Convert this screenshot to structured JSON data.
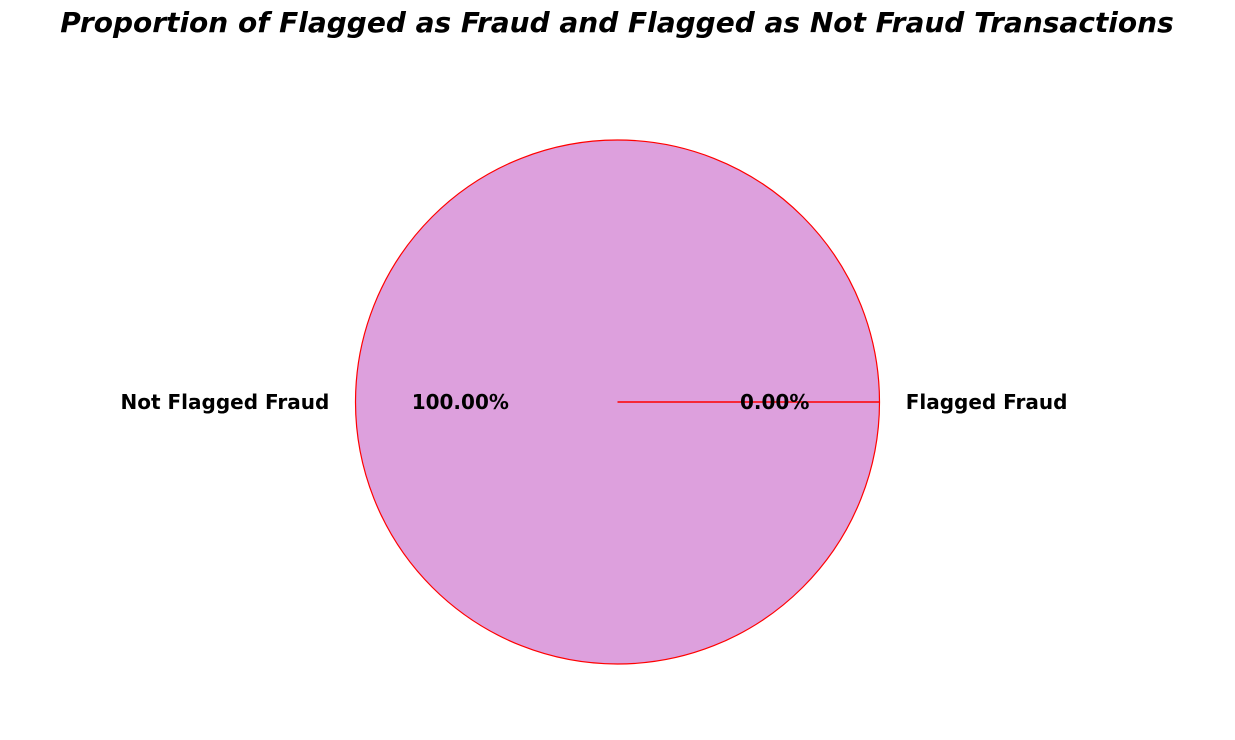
{
  "chart_data": {
    "type": "pie",
    "title": "Proportion of Flagged as Fraud and Flagged as Not Fraud Transactions",
    "slices": [
      {
        "label": "Flagged Fraud",
        "value": 0.0,
        "pct_label": "0.00%",
        "color": "#DDA0DD",
        "edgecolor": "#FF0000"
      },
      {
        "label": "Not Flagged Fraud",
        "value": 100.0,
        "pct_label": "100.00%",
        "color": "#DDA0DD",
        "edgecolor": "#FF0000"
      }
    ],
    "start_angle_deg": 0,
    "direction": "counterclockwise",
    "legend": "none"
  }
}
